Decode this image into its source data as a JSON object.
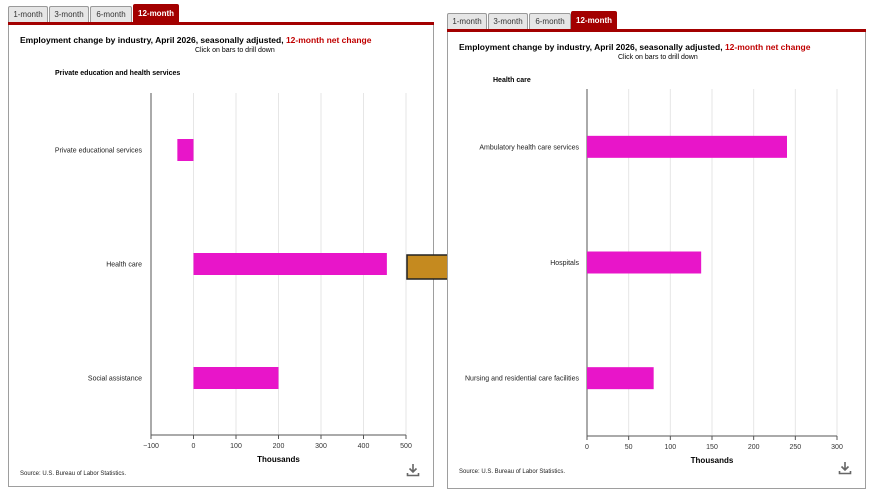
{
  "tabs": [
    "1-month",
    "3-month",
    "6-month",
    "12-month"
  ],
  "active_tab": "12-month",
  "colors": {
    "accent": "#a30000",
    "bar": "#e815c9",
    "arrow": "#c58a1f"
  },
  "panels": [
    {
      "title_main": "Employment change by industry, April 2026, seasonally adjusted, ",
      "title_accent": "12-month net change",
      "subtitle": "Click on bars to drill down",
      "group": "Private education and health services",
      "xlabel": "Thousands",
      "source": "Source: U.S. Bureau of Labor Statistics.",
      "download_icon": "download-icon"
    },
    {
      "title_main": "Employment change by industry, April 2026, seasonally adjusted, ",
      "title_accent": "12-month net change",
      "subtitle": "Click on bars to drill down",
      "group": "Health care",
      "xlabel": "Thousands",
      "source": "Source: U.S. Bureau of Labor Statistics.",
      "download_icon": "download-icon"
    }
  ],
  "chart_data": [
    {
      "type": "bar",
      "orientation": "horizontal",
      "categories": [
        "Private educational services",
        "Health care",
        "Social assistance"
      ],
      "values": [
        -38,
        455,
        200
      ],
      "xlabel": "Thousands",
      "xlim": [
        -100,
        500
      ],
      "xticks": [
        -100,
        0,
        100,
        200,
        300,
        400,
        500
      ],
      "grid": true
    },
    {
      "type": "bar",
      "orientation": "horizontal",
      "categories": [
        "Ambulatory health care services",
        "Hospitals",
        "Nursing and residential care facilities"
      ],
      "values": [
        240,
        137,
        80
      ],
      "xlabel": "Thousands",
      "xlim": [
        0,
        300
      ],
      "xticks": [
        0,
        50,
        100,
        150,
        200,
        250,
        300
      ],
      "grid": true
    }
  ]
}
